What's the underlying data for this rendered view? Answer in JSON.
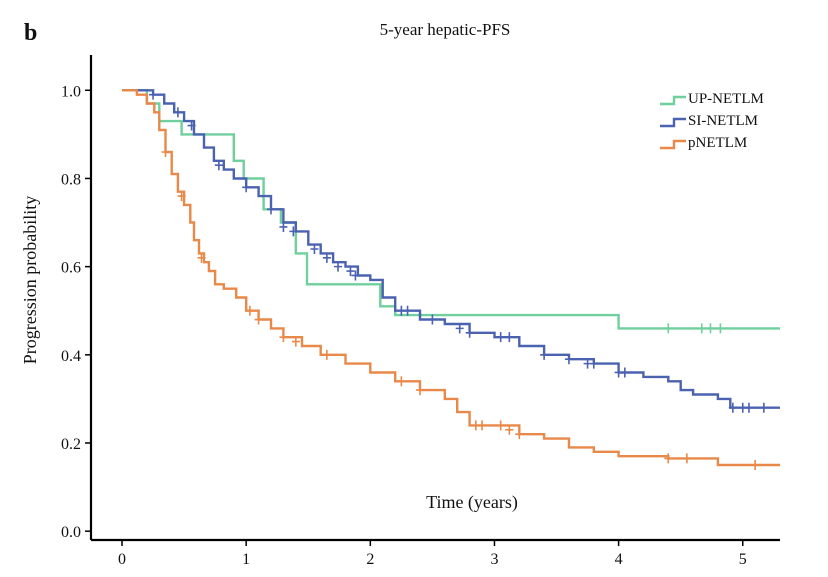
{
  "panel_label": "b",
  "colors": {
    "up": "#6fcf9d",
    "si": "#4a62b0",
    "pn": "#e8894a",
    "axis": "#000000"
  },
  "chart_data": {
    "type": "line",
    "title": "5-year hepatic-PFS",
    "xlabel": "Time (years)",
    "ylabel": "Progression probability",
    "xlim": [
      -0.25,
      5.3
    ],
    "ylim": [
      -0.02,
      1.08
    ],
    "x_ticks": [
      0,
      1,
      2,
      3,
      4,
      5
    ],
    "y_ticks": [
      0.0,
      0.2,
      0.4,
      0.6,
      0.8,
      1.0
    ],
    "y_tick_labels": [
      "0.0",
      "0.2",
      "0.4",
      "0.6",
      "0.8",
      "1.0"
    ],
    "legend_position": "top-right",
    "series": [
      {
        "name": "UP-NETLM",
        "color": "#6fcf9d",
        "steps": [
          [
            0,
            1.0
          ],
          [
            0.2,
            0.97
          ],
          [
            0.3,
            0.93
          ],
          [
            0.48,
            0.9
          ],
          [
            0.9,
            0.84
          ],
          [
            0.98,
            0.8
          ],
          [
            1.14,
            0.73
          ],
          [
            1.28,
            0.7
          ],
          [
            1.4,
            0.63
          ],
          [
            1.49,
            0.56
          ],
          [
            2.08,
            0.51
          ],
          [
            2.2,
            0.49
          ],
          [
            4.0,
            0.46
          ],
          [
            5.3,
            0.46
          ]
        ],
        "censors": [
          [
            4.4,
            0.46
          ],
          [
            4.67,
            0.46
          ],
          [
            4.74,
            0.46
          ],
          [
            4.82,
            0.46
          ]
        ]
      },
      {
        "name": "SI-NETLM",
        "color": "#4a62b0",
        "steps": [
          [
            0,
            1.0
          ],
          [
            0.25,
            0.99
          ],
          [
            0.34,
            0.97
          ],
          [
            0.42,
            0.95
          ],
          [
            0.5,
            0.93
          ],
          [
            0.58,
            0.9
          ],
          [
            0.66,
            0.87
          ],
          [
            0.74,
            0.84
          ],
          [
            0.82,
            0.82
          ],
          [
            0.9,
            0.8
          ],
          [
            1.0,
            0.78
          ],
          [
            1.1,
            0.76
          ],
          [
            1.2,
            0.73
          ],
          [
            1.3,
            0.7
          ],
          [
            1.4,
            0.68
          ],
          [
            1.5,
            0.65
          ],
          [
            1.6,
            0.63
          ],
          [
            1.7,
            0.61
          ],
          [
            1.8,
            0.6
          ],
          [
            1.9,
            0.58
          ],
          [
            2.0,
            0.57
          ],
          [
            2.1,
            0.53
          ],
          [
            2.2,
            0.5
          ],
          [
            2.4,
            0.48
          ],
          [
            2.6,
            0.47
          ],
          [
            2.8,
            0.45
          ],
          [
            3.0,
            0.44
          ],
          [
            3.2,
            0.42
          ],
          [
            3.4,
            0.4
          ],
          [
            3.6,
            0.39
          ],
          [
            3.8,
            0.38
          ],
          [
            4.0,
            0.36
          ],
          [
            4.2,
            0.35
          ],
          [
            4.4,
            0.34
          ],
          [
            4.5,
            0.32
          ],
          [
            4.6,
            0.31
          ],
          [
            4.8,
            0.3
          ],
          [
            4.9,
            0.28
          ],
          [
            5.3,
            0.28
          ]
        ],
        "censors": [
          [
            0.25,
            0.99
          ],
          [
            0.45,
            0.95
          ],
          [
            0.56,
            0.92
          ],
          [
            0.78,
            0.83
          ],
          [
            1.0,
            0.78
          ],
          [
            1.2,
            0.73
          ],
          [
            1.3,
            0.69
          ],
          [
            1.38,
            0.68
          ],
          [
            1.55,
            0.64
          ],
          [
            1.65,
            0.62
          ],
          [
            1.74,
            0.6
          ],
          [
            1.84,
            0.59
          ],
          [
            1.88,
            0.58
          ],
          [
            2.25,
            0.5
          ],
          [
            2.3,
            0.5
          ],
          [
            2.5,
            0.48
          ],
          [
            2.72,
            0.46
          ],
          [
            2.8,
            0.45
          ],
          [
            3.05,
            0.44
          ],
          [
            3.12,
            0.44
          ],
          [
            3.4,
            0.4
          ],
          [
            3.6,
            0.39
          ],
          [
            3.75,
            0.38
          ],
          [
            3.8,
            0.38
          ],
          [
            4.0,
            0.36
          ],
          [
            4.05,
            0.36
          ],
          [
            4.92,
            0.28
          ],
          [
            5.0,
            0.28
          ],
          [
            5.05,
            0.28
          ],
          [
            5.17,
            0.28
          ]
        ]
      },
      {
        "name": "pNETLM",
        "color": "#e8894a",
        "steps": [
          [
            0,
            1.0
          ],
          [
            0.12,
            0.99
          ],
          [
            0.2,
            0.97
          ],
          [
            0.26,
            0.95
          ],
          [
            0.3,
            0.91
          ],
          [
            0.35,
            0.86
          ],
          [
            0.4,
            0.81
          ],
          [
            0.45,
            0.77
          ],
          [
            0.5,
            0.74
          ],
          [
            0.55,
            0.7
          ],
          [
            0.58,
            0.66
          ],
          [
            0.62,
            0.63
          ],
          [
            0.66,
            0.61
          ],
          [
            0.7,
            0.59
          ],
          [
            0.75,
            0.56
          ],
          [
            0.82,
            0.55
          ],
          [
            0.92,
            0.53
          ],
          [
            1.0,
            0.5
          ],
          [
            1.1,
            0.48
          ],
          [
            1.2,
            0.46
          ],
          [
            1.3,
            0.44
          ],
          [
            1.45,
            0.42
          ],
          [
            1.6,
            0.4
          ],
          [
            1.8,
            0.38
          ],
          [
            2.0,
            0.36
          ],
          [
            2.2,
            0.34
          ],
          [
            2.4,
            0.32
          ],
          [
            2.6,
            0.3
          ],
          [
            2.7,
            0.27
          ],
          [
            2.8,
            0.24
          ],
          [
            3.0,
            0.24
          ],
          [
            3.2,
            0.22
          ],
          [
            3.4,
            0.21
          ],
          [
            3.6,
            0.19
          ],
          [
            3.8,
            0.18
          ],
          [
            4.0,
            0.17
          ],
          [
            4.4,
            0.165
          ],
          [
            4.8,
            0.165
          ],
          [
            4.8,
            0.15
          ],
          [
            5.3,
            0.15
          ]
        ],
        "censors": [
          [
            0.35,
            0.86
          ],
          [
            0.48,
            0.76
          ],
          [
            0.64,
            0.62
          ],
          [
            1.03,
            0.5
          ],
          [
            1.1,
            0.48
          ],
          [
            1.3,
            0.44
          ],
          [
            1.4,
            0.43
          ],
          [
            1.65,
            0.4
          ],
          [
            2.25,
            0.34
          ],
          [
            2.4,
            0.32
          ],
          [
            2.85,
            0.24
          ],
          [
            2.9,
            0.24
          ],
          [
            3.05,
            0.24
          ],
          [
            3.12,
            0.23
          ],
          [
            3.2,
            0.22
          ],
          [
            4.4,
            0.165
          ],
          [
            4.55,
            0.165
          ],
          [
            5.1,
            0.15
          ]
        ]
      }
    ]
  }
}
